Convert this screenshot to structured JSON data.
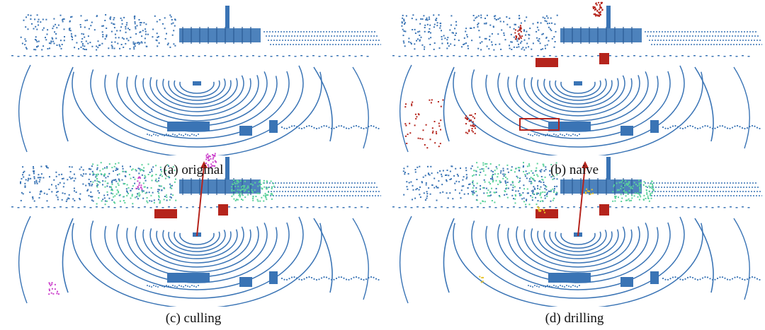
{
  "panels": [
    {
      "id": "a",
      "caption": "(a) original",
      "overlays": []
    },
    {
      "id": "b",
      "caption": "(b) naive",
      "overlays": [
        "red"
      ]
    },
    {
      "id": "c",
      "caption": "(c) culling",
      "overlays": [
        "red",
        "green",
        "magenta",
        "arrow"
      ]
    },
    {
      "id": "d",
      "caption": "(d) drilling",
      "overlays": [
        "red",
        "green",
        "yellow",
        "arrow"
      ]
    }
  ],
  "colors": {
    "scan": "#3a74b5",
    "injected": "#b5241c",
    "culled": "#59d19a",
    "removed": "#cc44cc",
    "drilled": "#e8c42a",
    "arrow": "#b5241c"
  }
}
